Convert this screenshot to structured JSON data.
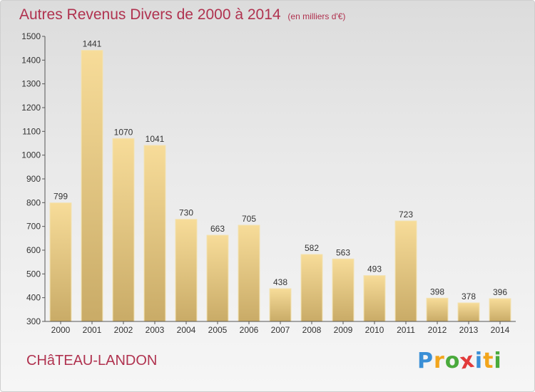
{
  "chart_data": {
    "type": "bar",
    "title": "Autres Revenus Divers de 2000 à 2014",
    "subtitle": "(en milliers d'€)",
    "categories": [
      "2000",
      "2001",
      "2002",
      "2003",
      "2004",
      "2005",
      "2006",
      "2007",
      "2008",
      "2009",
      "2010",
      "2011",
      "2012",
      "2013",
      "2014"
    ],
    "values": [
      799,
      1441,
      1070,
      1041,
      730,
      663,
      705,
      438,
      582,
      563,
      493,
      723,
      398,
      378,
      396
    ],
    "ylim": [
      300,
      1500
    ],
    "yticks": [
      300,
      400,
      500,
      600,
      700,
      800,
      900,
      1000,
      1100,
      1200,
      1300,
      1400,
      1500
    ],
    "xlabel": "",
    "ylabel": "",
    "grid": false,
    "bar_color": "#e6c77f"
  },
  "commune": "CHâTEAU-LANDON",
  "logo": {
    "letters": [
      "P",
      "r",
      "o",
      "x",
      "i",
      "t",
      "i"
    ],
    "colors": [
      "#3a8fd6",
      "#f2a51c",
      "#4aaa3c",
      "#e23b3b",
      "#3a8fd6",
      "#f2a51c",
      "#4aaa3c"
    ]
  }
}
